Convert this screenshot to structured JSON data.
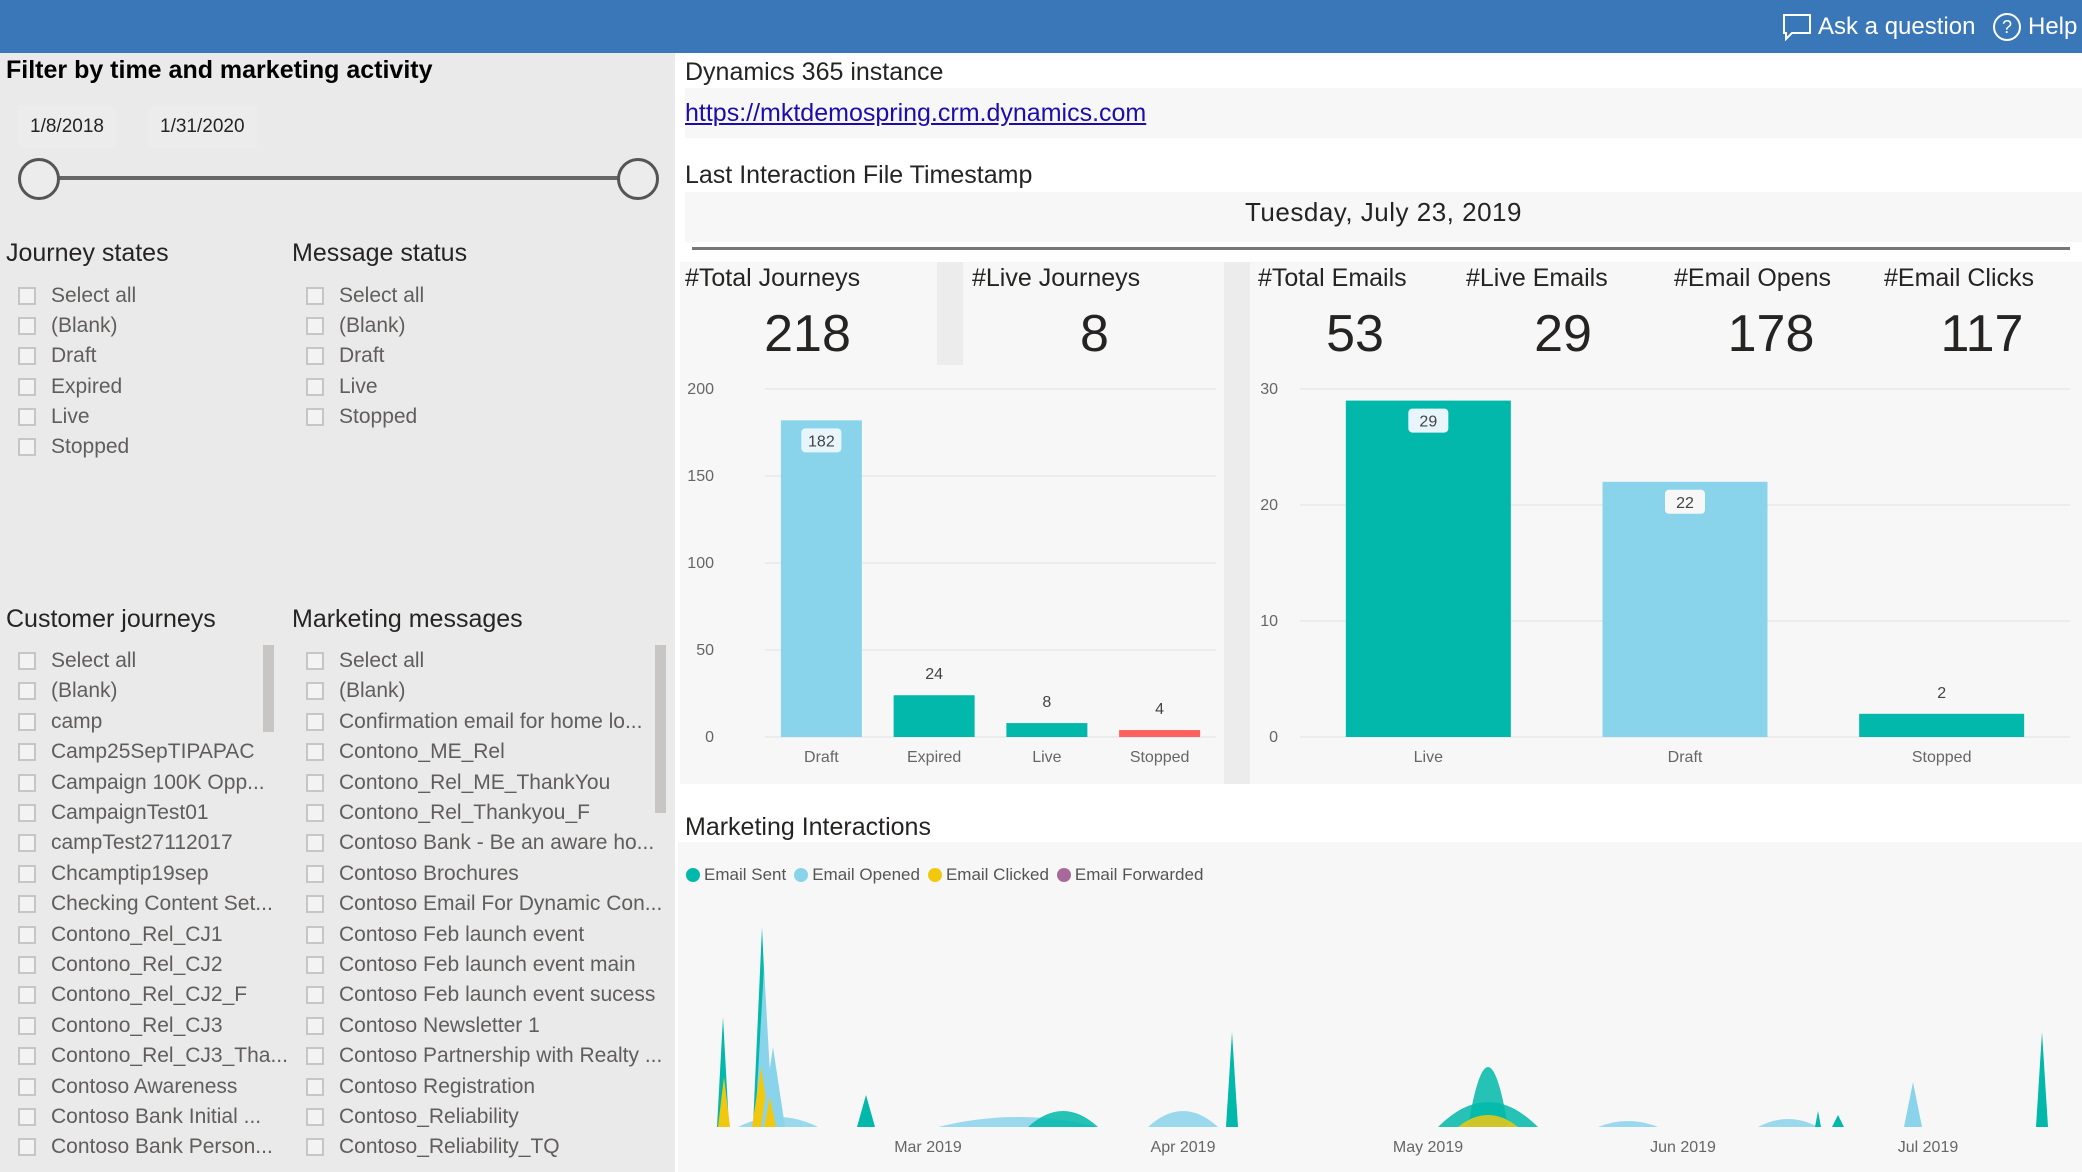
{
  "topbar": {
    "ask_label": "Ask a question",
    "help_label": "Help"
  },
  "filters": {
    "title": "Filter by time and marketing activity",
    "date_start": "1/8/2018",
    "date_end": "1/31/2020",
    "journey_states": {
      "title": "Journey states",
      "items": [
        "Select all",
        "(Blank)",
        "Draft",
        "Expired",
        "Live",
        "Stopped"
      ]
    },
    "message_status": {
      "title": "Message status",
      "items": [
        "Select all",
        "(Blank)",
        "Draft",
        "Live",
        "Stopped"
      ]
    },
    "customer_journeys": {
      "title": "Customer journeys",
      "items": [
        "Select all",
        "(Blank)",
        "camp",
        "Camp25SepTIPAPAC",
        "Campaign 100K Opp...",
        "CampaignTest01",
        "campTest27112017",
        "Chcamptip19sep",
        "Checking Content Set...",
        "Contono_Rel_CJ1",
        "Contono_Rel_CJ2",
        "Contono_Rel_CJ2_F",
        "Contono_Rel_CJ3",
        "Contono_Rel_CJ3_Tha...",
        "Contoso Awareness",
        "Contoso Bank Initial ...",
        "Contoso Bank Person..."
      ]
    },
    "marketing_messages": {
      "title": "Marketing messages",
      "items": [
        "Select all",
        "(Blank)",
        "Confirmation email for home lo...",
        "Contono_ME_Rel",
        "Contono_Rel_ME_ThankYou",
        "Contono_Rel_Thankyou_F",
        "Contoso Bank - Be an aware ho...",
        "Contoso Brochures",
        "Contoso Email For Dynamic Con...",
        "Contoso Feb launch event",
        "Contoso Feb launch event main",
        "Contoso Feb launch event sucess",
        "Contoso Newsletter 1",
        "Contoso Partnership with Realty ...",
        "Contoso Registration",
        "Contoso_Reliability",
        "Contoso_Reliability_TQ"
      ]
    }
  },
  "instance": {
    "title": "Dynamics 365 instance",
    "url": "https://mktdemospring.crm.dynamics.com"
  },
  "timestamp": {
    "title": "Last Interaction File Timestamp",
    "value": "Tuesday, July 23, 2019"
  },
  "kpis": {
    "total_journeys": {
      "label": "#Total Journeys",
      "value": "218"
    },
    "live_journeys": {
      "label": "#Live Journeys",
      "value": "8"
    },
    "total_emails": {
      "label": "#Total Emails",
      "value": "53"
    },
    "live_emails": {
      "label": "#Live Emails",
      "value": "29"
    },
    "email_opens": {
      "label": "#Email Opens",
      "value": "178"
    },
    "email_clicks": {
      "label": "#Email Clicks",
      "value": "117"
    }
  },
  "interactions": {
    "title": "Marketing Interactions",
    "legend": [
      {
        "name": "Email Sent",
        "color": "#01b8aa"
      },
      {
        "name": "Email Opened",
        "color": "#8ad4eb"
      },
      {
        "name": "Email Clicked",
        "color": "#f2c80f"
      },
      {
        "name": "Email Forwarded",
        "color": "#a66999"
      }
    ],
    "month_labels": [
      "Mar 2019",
      "Apr 2019",
      "May 2019",
      "Jun 2019",
      "Jul 2019"
    ]
  },
  "colors": {
    "accent": "#3a77b8",
    "teal": "#01b8aa",
    "light_blue": "#8ad4eb",
    "red": "#fd625e",
    "yellow": "#f2c80f",
    "link": "#1a0dab"
  },
  "chart_data": [
    {
      "type": "bar",
      "categories": [
        "Draft",
        "Expired",
        "Live",
        "Stopped"
      ],
      "values": [
        182,
        24,
        8,
        4
      ],
      "colors": [
        "#8ad4eb",
        "#01b8aa",
        "#01b8aa",
        "#fd625e"
      ],
      "ylim": [
        0,
        200
      ],
      "yticks": [
        0,
        50,
        100,
        150,
        200
      ],
      "data_labels": true,
      "grid": true
    },
    {
      "type": "bar",
      "categories": [
        "Live",
        "Draft",
        "Stopped"
      ],
      "values": [
        29,
        22,
        2
      ],
      "colors": [
        "#01b8aa",
        "#8ad4eb",
        "#01b8aa"
      ],
      "ylim": [
        0,
        30
      ],
      "yticks": [
        0,
        10,
        20,
        30
      ],
      "data_labels": true,
      "grid": true
    }
  ]
}
